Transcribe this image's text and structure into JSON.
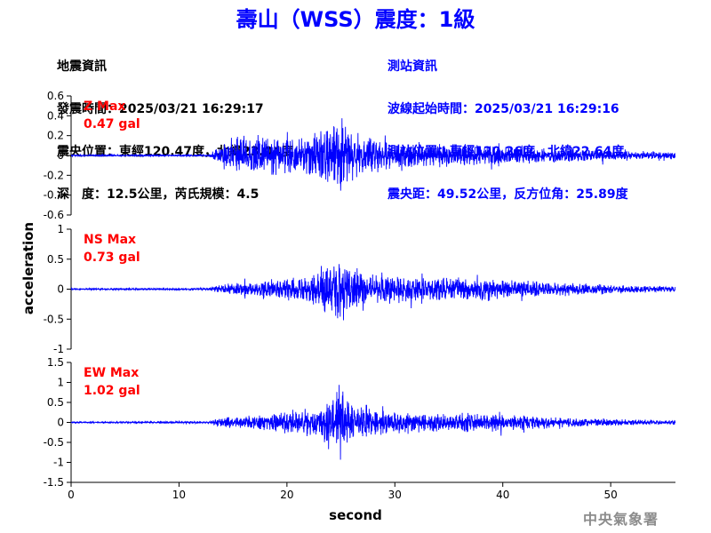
{
  "title": "壽山（WSS）震度：1級",
  "earthquake_info": {
    "heading": "地震資訊",
    "origin_time": "發震時間：2025/03/21 16:29:17",
    "epicenter": "震央位置：東經120.47度，北緯23.04度",
    "depth_magnitude": "深　度：12.5公里，芮氏規模：4.5"
  },
  "station_info": {
    "heading": "測站資訊",
    "wave_start": "波線起始時間：2025/03/21 16:29:16",
    "station_location": "測站位置：東經120.26度，北緯22.64度",
    "distance_azimuth": "震央距：49.52公里，反方位角：25.89度"
  },
  "watermark": "中央氣象署",
  "colors": {
    "title": "#0000ff",
    "trace": "#0000ff",
    "max_label": "#ff0000",
    "station_text": "#0000ff"
  },
  "chart_data": {
    "type": "line",
    "xlabel": "second",
    "ylabel": "acceleration",
    "xlim": [
      0,
      56
    ],
    "xticks": [
      0,
      10,
      20,
      30,
      40,
      50
    ],
    "grid": false,
    "panels": [
      {
        "component": "Z",
        "max_label": "Z Max",
        "max_value": "0.47 gal",
        "ylim": [
          -0.6,
          0.6
        ],
        "yticks": [
          "0.6",
          "0.4",
          "0.2",
          "0",
          "-0.2",
          "-0.4",
          "-0.6"
        ],
        "envelope": {
          "t": [
            0,
            12.8,
            13.5,
            15,
            17,
            19,
            21,
            23,
            24.5,
            25,
            25.5,
            26.5,
            28,
            30,
            32,
            35,
            38,
            40,
            42,
            45,
            48,
            52,
            56
          ],
          "a": [
            0.01,
            0.012,
            0.1,
            0.17,
            0.2,
            0.24,
            0.22,
            0.3,
            0.4,
            0.46,
            0.36,
            0.28,
            0.22,
            0.16,
            0.14,
            0.13,
            0.12,
            0.11,
            0.1,
            0.09,
            0.07,
            0.05,
            0.04
          ]
        }
      },
      {
        "component": "NS",
        "max_label": "NS Max",
        "max_value": "0.73 gal",
        "ylim": [
          -1,
          1
        ],
        "yticks": [
          "1",
          "0.5",
          "0",
          "-0.5",
          "-1"
        ],
        "envelope": {
          "t": [
            0,
            12.8,
            13.5,
            15,
            17,
            19,
            21,
            23,
            24.5,
            25,
            25.6,
            26.5,
            28,
            30,
            32,
            35,
            38,
            40,
            42,
            45,
            48,
            52,
            56
          ],
          "a": [
            0.015,
            0.02,
            0.08,
            0.12,
            0.15,
            0.2,
            0.25,
            0.38,
            0.55,
            0.72,
            0.5,
            0.38,
            0.3,
            0.27,
            0.25,
            0.22,
            0.24,
            0.2,
            0.17,
            0.13,
            0.1,
            0.07,
            0.05
          ]
        }
      },
      {
        "component": "EW",
        "max_label": "EW Max",
        "max_value": "1.02 gal",
        "ylim": [
          -1.5,
          1.5
        ],
        "yticks": [
          "1.5",
          "1",
          "0.5",
          "0",
          "-0.5",
          "-1",
          "-1.5"
        ],
        "envelope": {
          "t": [
            0,
            12.8,
            13.5,
            15,
            17,
            19,
            21,
            23,
            24.5,
            25,
            25.6,
            26.5,
            28,
            30,
            32,
            35,
            38,
            40,
            42,
            45,
            48,
            52,
            56
          ],
          "a": [
            0.02,
            0.03,
            0.12,
            0.16,
            0.2,
            0.28,
            0.33,
            0.5,
            0.75,
            1.0,
            0.75,
            0.5,
            0.38,
            0.33,
            0.3,
            0.26,
            0.27,
            0.24,
            0.2,
            0.16,
            0.12,
            0.08,
            0.06
          ]
        }
      }
    ]
  }
}
